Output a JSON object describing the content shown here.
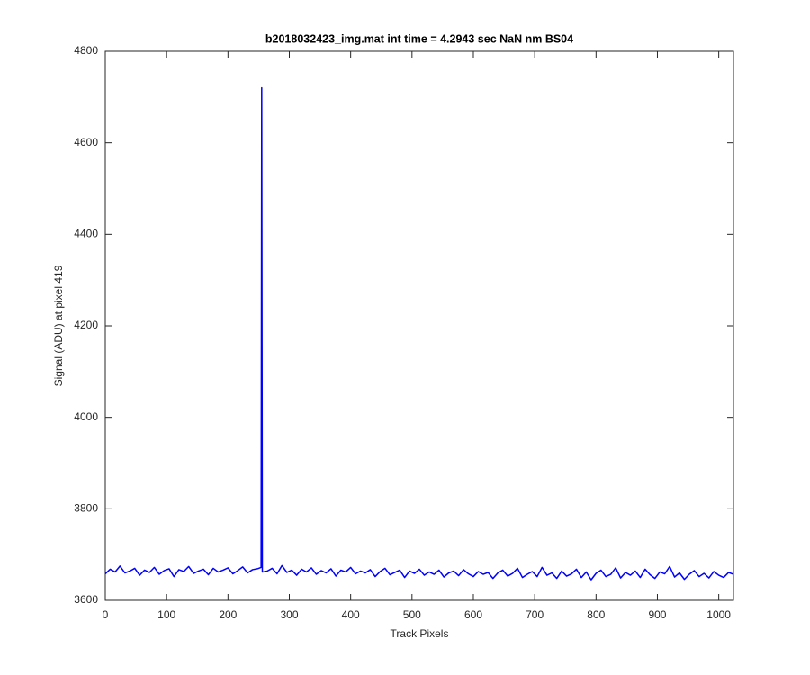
{
  "chart_data": {
    "type": "line",
    "title": "b2018032423_img.mat int time = 4.2943 sec  NaN nm BS04",
    "xlabel": "Track Pixels",
    "ylabel": "Signal (ADU) at pixel 419",
    "xlim": [
      0,
      1024
    ],
    "ylim": [
      3600,
      4800
    ],
    "xticks": [
      0,
      100,
      200,
      300,
      400,
      500,
      600,
      700,
      800,
      900,
      1000
    ],
    "yticks": [
      3600,
      3800,
      4000,
      4200,
      4400,
      4600,
      4800
    ],
    "grid": false,
    "x": [
      0,
      8,
      16,
      24,
      32,
      40,
      48,
      56,
      64,
      72,
      80,
      88,
      96,
      104,
      112,
      120,
      128,
      136,
      144,
      152,
      160,
      168,
      176,
      184,
      192,
      200,
      208,
      216,
      224,
      232,
      240,
      248,
      254,
      255,
      256,
      264,
      272,
      280,
      288,
      296,
      304,
      312,
      320,
      328,
      336,
      344,
      352,
      360,
      368,
      376,
      384,
      392,
      400,
      408,
      416,
      424,
      432,
      440,
      448,
      456,
      464,
      472,
      480,
      488,
      496,
      504,
      512,
      520,
      528,
      536,
      544,
      552,
      560,
      568,
      576,
      584,
      592,
      600,
      608,
      616,
      624,
      632,
      640,
      648,
      656,
      664,
      672,
      680,
      688,
      696,
      704,
      712,
      720,
      728,
      736,
      744,
      752,
      760,
      768,
      776,
      784,
      792,
      800,
      808,
      816,
      824,
      832,
      840,
      848,
      856,
      864,
      872,
      880,
      888,
      896,
      904,
      912,
      920,
      928,
      936,
      944,
      952,
      960,
      968,
      976,
      984,
      992,
      1000,
      1008,
      1016,
      1024
    ],
    "series": [
      {
        "name": "signal",
        "color": "#0000ff",
        "values": [
          3658,
          3668,
          3662,
          3675,
          3660,
          3664,
          3670,
          3655,
          3666,
          3661,
          3672,
          3657,
          3665,
          3669,
          3652,
          3667,
          3663,
          3674,
          3659,
          3664,
          3668,
          3656,
          3670,
          3662,
          3666,
          3671,
          3658,
          3665,
          3673,
          3660,
          3667,
          3669,
          3672,
          4720,
          3662,
          3664,
          3670,
          3658,
          3676,
          3661,
          3666,
          3655,
          3668,
          3662,
          3671,
          3657,
          3665,
          3660,
          3669,
          3653,
          3666,
          3662,
          3672,
          3658,
          3664,
          3660,
          3667,
          3652,
          3663,
          3670,
          3656,
          3661,
          3666,
          3650,
          3664,
          3659,
          3668,
          3655,
          3662,
          3657,
          3666,
          3651,
          3660,
          3664,
          3654,
          3667,
          3658,
          3652,
          3663,
          3657,
          3661,
          3648,
          3660,
          3666,
          3653,
          3659,
          3670,
          3650,
          3657,
          3663,
          3652,
          3672,
          3655,
          3660,
          3648,
          3664,
          3653,
          3658,
          3668,
          3650,
          3662,
          3645,
          3659,
          3666,
          3652,
          3657,
          3671,
          3649,
          3661,
          3655,
          3664,
          3650,
          3668,
          3656,
          3648,
          3662,
          3658,
          3674,
          3651,
          3660,
          3646,
          3657,
          3665,
          3652,
          3659,
          3649,
          3663,
          3655,
          3650,
          3661,
          3657
        ]
      }
    ]
  }
}
